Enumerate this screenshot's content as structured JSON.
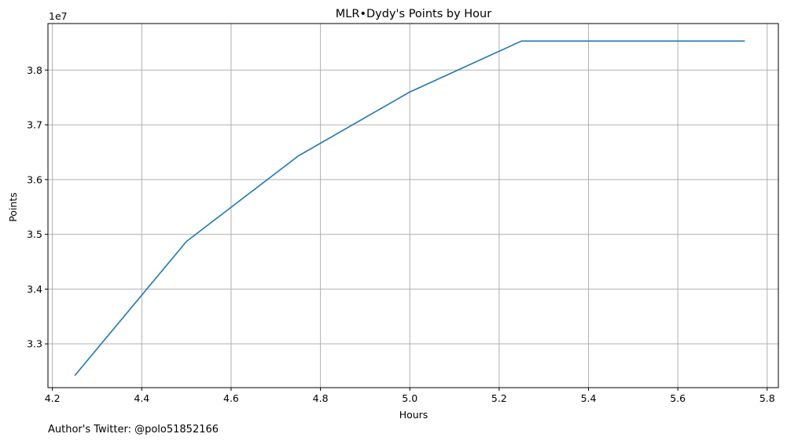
{
  "chart_data": {
    "type": "line",
    "title": "MLR•Dydy's Points by Hour",
    "xlabel": "Hours",
    "ylabel": "Points",
    "y_offset_text": "1e7",
    "y_scale_multiplier": 10000000,
    "xlim": [
      4.19,
      5.825
    ],
    "ylim": [
      32200000.0,
      38850000.0
    ],
    "grid": true,
    "x_ticks": [
      4.2,
      4.4,
      4.6,
      4.8,
      5.0,
      5.2,
      5.4,
      5.6,
      5.8
    ],
    "x_tick_labels": [
      "4.2",
      "4.4",
      "4.6",
      "4.8",
      "5.0",
      "5.2",
      "5.4",
      "5.6",
      "5.8"
    ],
    "y_ticks": [
      33000000,
      34000000,
      35000000,
      36000000,
      37000000,
      38000000
    ],
    "y_tick_labels": [
      "3.3",
      "3.4",
      "3.5",
      "3.6",
      "3.7",
      "3.8"
    ],
    "series": [
      {
        "color": "#1f77b4",
        "x": [
          4.25,
          4.5,
          4.75,
          5.0,
          5.25,
          5.5,
          5.75
        ],
        "y": [
          32420000,
          34870000,
          36430000,
          37600000,
          38530000,
          38530000,
          38530000
        ]
      }
    ]
  },
  "footnote": "Author's Twitter: @polo51852166"
}
